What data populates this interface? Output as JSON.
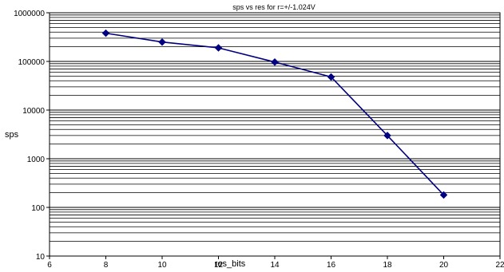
{
  "chart_data": {
    "type": "line",
    "title": "sps vs res for r=+/-1.024V",
    "xlabel": "res_bits",
    "ylabel": "sps",
    "xlim": [
      6,
      22
    ],
    "ylim": [
      10,
      1000000
    ],
    "y_scale": "log",
    "x_ticks": [
      "6",
      "8",
      "10",
      "12",
      "14",
      "16",
      "18",
      "20",
      "22"
    ],
    "y_ticks": [
      "10",
      "100",
      "1000",
      "10000",
      "100000",
      "1000000"
    ],
    "grid": "horizontal major and minor",
    "legend": "none",
    "series": [
      {
        "color": "#000080",
        "marker": "diamond",
        "x": [
          8,
          10,
          12,
          14,
          16,
          18,
          20
        ],
        "y": [
          380000,
          250000,
          190000,
          97000,
          48000,
          3000,
          180
        ]
      }
    ]
  }
}
